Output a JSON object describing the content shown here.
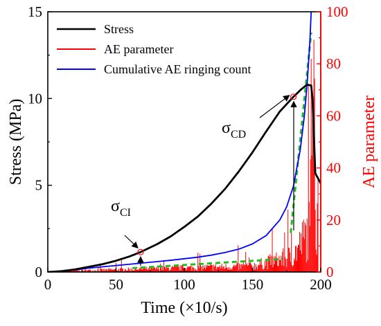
{
  "chart_data": {
    "type": "line",
    "title": "",
    "xlabel": "Time  (×10/s)",
    "ylabel_left": "Stress (MPa)",
    "ylabel_right": "AE parameter",
    "xlim": [
      0,
      200
    ],
    "ylim_left": [
      0,
      15
    ],
    "ylim_right": [
      0,
      100
    ],
    "x_ticks": [
      "0",
      "50",
      "100",
      "150",
      "200"
    ],
    "y_left_ticks": [
      "0",
      "5",
      "10",
      "15"
    ],
    "y_right_ticks": [
      "0",
      "20",
      "40",
      "60",
      "80",
      "100"
    ],
    "grid": false,
    "legend_placement": "top-left",
    "colors": {
      "stress": "#000000",
      "ae": "#ff0000",
      "cumulative": "#0000ff",
      "fit": "#22bb22",
      "right_axis": "#ff0000"
    },
    "series": [
      {
        "name": "Stress",
        "axis": "left",
        "x": [
          0,
          10,
          20,
          30,
          40,
          50,
          60,
          68,
          80,
          90,
          100,
          110,
          120,
          130,
          140,
          150,
          160,
          170,
          180,
          186,
          190,
          193,
          194,
          196,
          200
        ],
        "y": [
          0,
          0.05,
          0.15,
          0.3,
          0.45,
          0.65,
          0.9,
          1.15,
          1.6,
          2.05,
          2.6,
          3.2,
          3.95,
          4.8,
          5.8,
          6.9,
          8.1,
          9.25,
          10.1,
          10.55,
          10.8,
          10.75,
          10.0,
          5.7,
          5.1
        ]
      },
      {
        "name": "Cumulative AE ringing count",
        "axis": "right",
        "x": [
          0,
          10,
          20,
          30,
          40,
          50,
          60,
          68,
          80,
          90,
          100,
          110,
          120,
          130,
          140,
          150,
          160,
          170,
          175,
          180,
          185,
          188,
          190,
          192,
          193
        ],
        "y": [
          0,
          0.3,
          0.8,
          1.5,
          2.0,
          2.5,
          3.0,
          3.4,
          4.0,
          4.5,
          5.1,
          5.7,
          6.5,
          7.5,
          8.8,
          10.8,
          14.0,
          20.0,
          25.0,
          33.0,
          47.0,
          60.0,
          72.0,
          88.0,
          100.0
        ]
      },
      {
        "name": "AE parameter",
        "axis": "right",
        "style": "impulses",
        "seed": 7,
        "x_range": [
          3,
          198
        ]
      }
    ],
    "fit_lines": [
      {
        "axis": "right",
        "x": [
          62,
          172
        ],
        "y": [
          1.5,
          5.0
        ]
      },
      {
        "axis": "right",
        "x": [
          178,
          193
        ],
        "y": [
          15.0,
          92.0
        ]
      }
    ],
    "annotations": [
      {
        "label": "σ",
        "sub": "CI",
        "x": 68,
        "y_left": 1.15
      },
      {
        "label": "σ",
        "sub": "CD",
        "x": 180,
        "y_left": 10.1
      }
    ]
  }
}
